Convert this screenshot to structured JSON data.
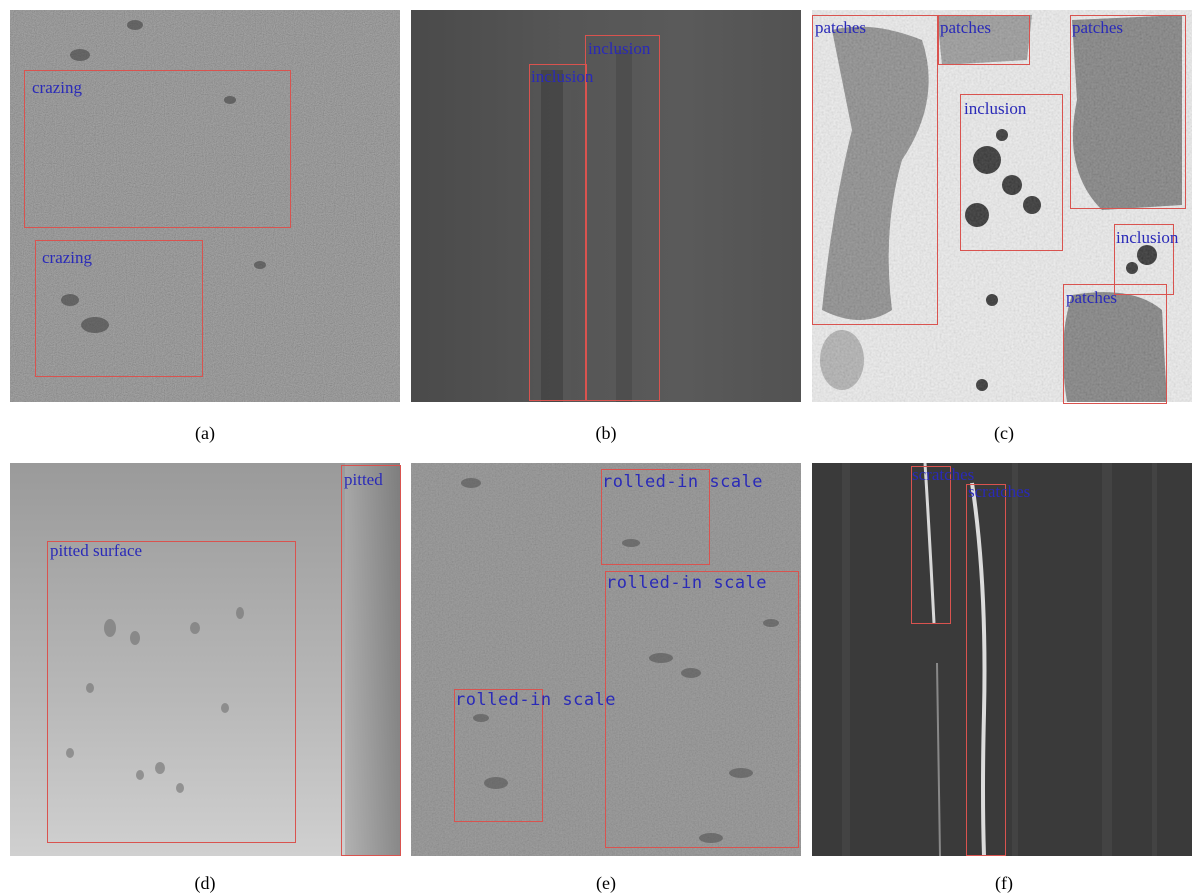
{
  "panels": [
    {
      "caption": "(a)",
      "boxes": [
        {
          "label": "crazing"
        },
        {
          "label": "crazing"
        }
      ]
    },
    {
      "caption": "(b)",
      "boxes": [
        {
          "label": "inclusion"
        },
        {
          "label": "inclusion"
        }
      ]
    },
    {
      "caption": "(c)",
      "boxes": [
        {
          "label": "patches"
        },
        {
          "label": "patches"
        },
        {
          "label": "patches"
        },
        {
          "label": "inclusion"
        },
        {
          "label": "inclusion"
        },
        {
          "label": "patches"
        }
      ]
    },
    {
      "caption": "(d)",
      "boxes": [
        {
          "label": "pitted"
        },
        {
          "label": "pitted surface"
        }
      ]
    },
    {
      "caption": "(e)",
      "boxes": [
        {
          "label": "rolled-in scale"
        },
        {
          "label": "rolled-in scale"
        },
        {
          "label": "rolled-in scale"
        }
      ]
    },
    {
      "caption": "(f)",
      "boxes": [
        {
          "label": "scratches"
        },
        {
          "label": "scratches"
        }
      ]
    }
  ],
  "colors": {
    "box": "#d9534f",
    "label": "#2a2ab8"
  }
}
